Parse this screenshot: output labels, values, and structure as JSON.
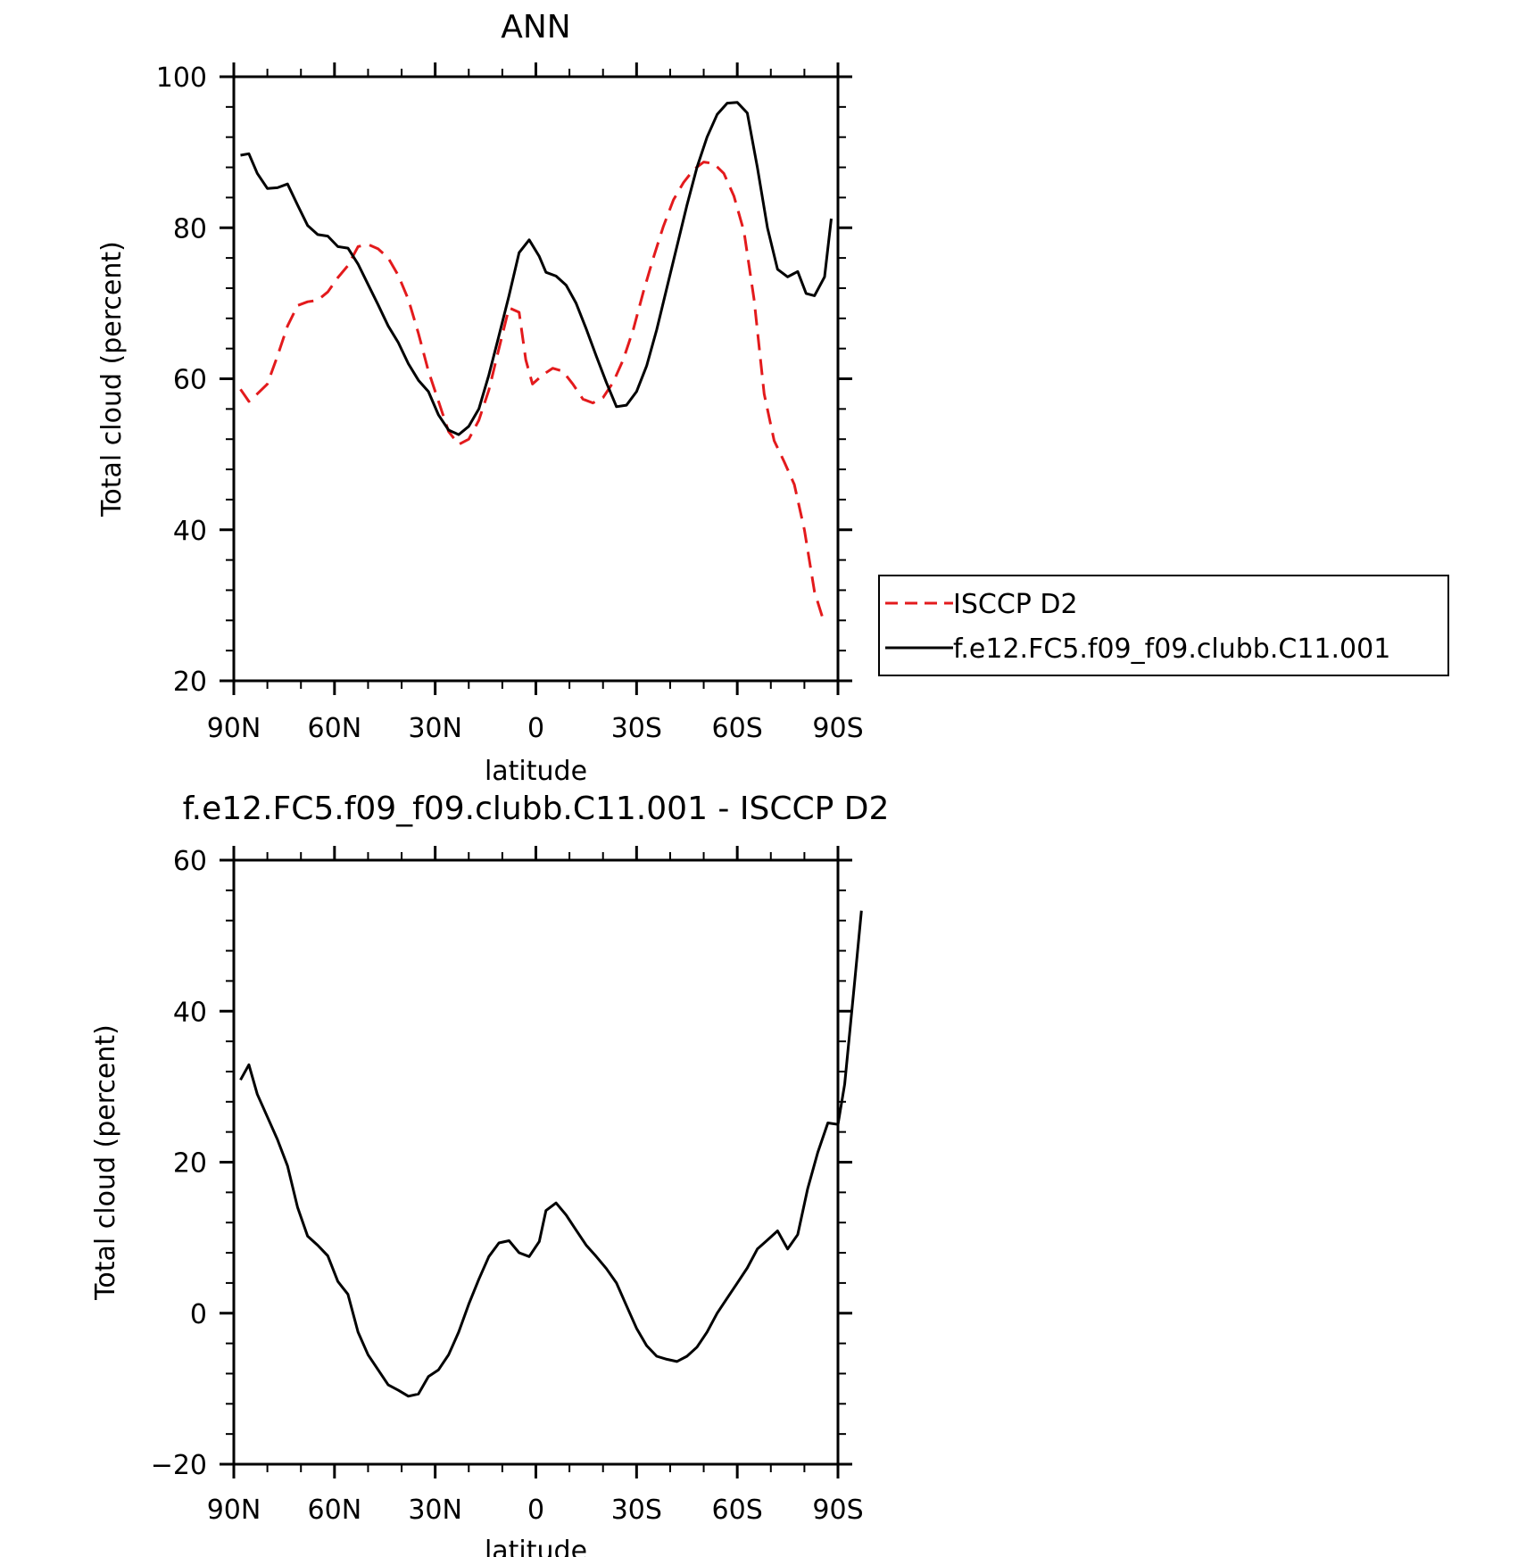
{
  "chart_data": [
    {
      "type": "line",
      "title": "ANN",
      "xlabel": "latitude",
      "ylabel": "Total cloud (percent)",
      "xlim": [
        -90,
        90
      ],
      "ylim": [
        20,
        100
      ],
      "x_ticks": [
        -90,
        -60,
        -30,
        0,
        30,
        60,
        90
      ],
      "x_tick_labels": [
        "90N",
        "60N",
        "30N",
        "0",
        "30S",
        "60S",
        "90S"
      ],
      "y_ticks": [
        20,
        40,
        60,
        80,
        100
      ],
      "y_tick_labels": [
        "20",
        "40",
        "60",
        "80",
        "100"
      ],
      "grid": false,
      "legend_position": "right-middle",
      "series": [
        {
          "name": "ISCCP D2",
          "color": "#e31a1c",
          "dash": "dashed",
          "points": [
            [
              -88,
              58.6
            ],
            [
              -85.5,
              57.0
            ],
            [
              -83,
              58.0
            ],
            [
              -80,
              59.3
            ],
            [
              -77,
              63.0
            ],
            [
              -74,
              67.0
            ],
            [
              -71,
              69.7
            ],
            [
              -68,
              70.2
            ],
            [
              -65,
              70.4
            ],
            [
              -62,
              71.5
            ],
            [
              -59,
              73.4
            ],
            [
              -56,
              75.0
            ],
            [
              -53,
              77.5
            ],
            [
              -50,
              77.8
            ],
            [
              -47,
              77.2
            ],
            [
              -44,
              76.0
            ],
            [
              -41,
              73.7
            ],
            [
              -38,
              70.5
            ],
            [
              -35,
              66.0
            ],
            [
              -32,
              61.0
            ],
            [
              -29,
              57.0
            ],
            [
              -26,
              53.0
            ],
            [
              -23,
              51.3
            ],
            [
              -20,
              52.0
            ],
            [
              -17,
              54.5
            ],
            [
              -14,
              58.5
            ],
            [
              -11,
              64.0
            ],
            [
              -8,
              69.4
            ],
            [
              -5,
              68.8
            ],
            [
              -3,
              62.5
            ],
            [
              -1,
              59.3
            ],
            [
              2,
              60.5
            ],
            [
              5,
              61.4
            ],
            [
              8,
              61.0
            ],
            [
              11,
              59.3
            ],
            [
              14,
              57.3
            ],
            [
              17,
              56.8
            ],
            [
              20,
              57.5
            ],
            [
              23,
              59.5
            ],
            [
              26,
              62.5
            ],
            [
              29,
              66.5
            ],
            [
              32,
              71.5
            ],
            [
              35,
              76.0
            ],
            [
              38,
              80.2
            ],
            [
              41,
              83.7
            ],
            [
              44,
              86.0
            ],
            [
              47,
              87.7
            ],
            [
              50,
              88.7
            ],
            [
              53,
              88.5
            ],
            [
              56,
              87.2
            ],
            [
              59,
              84.2
            ],
            [
              62,
              79.5
            ],
            [
              65,
              70.5
            ],
            [
              68,
              58.0
            ],
            [
              71,
              51.8
            ],
            [
              74,
              49.0
            ],
            [
              77,
              46.0
            ],
            [
              80,
              40.0
            ],
            [
              83,
              31.8
            ],
            [
              86,
              27.5
            ]
          ]
        },
        {
          "name": "f.e12.FC5.f09_f09.clubb.C11.001",
          "color": "#000000",
          "dash": "solid",
          "points": [
            [
              -88,
              89.6
            ],
            [
              -85.5,
              89.8
            ],
            [
              -83,
              87.2
            ],
            [
              -80,
              85.2
            ],
            [
              -77,
              85.3
            ],
            [
              -74,
              85.8
            ],
            [
              -71,
              83.0
            ],
            [
              -68,
              80.3
            ],
            [
              -65,
              79.1
            ],
            [
              -62,
              78.9
            ],
            [
              -59,
              77.5
            ],
            [
              -56,
              77.3
            ],
            [
              -53,
              75.2
            ],
            [
              -50,
              72.5
            ],
            [
              -47,
              69.8
            ],
            [
              -44,
              67.0
            ],
            [
              -41,
              64.8
            ],
            [
              -38,
              62.0
            ],
            [
              -35,
              59.8
            ],
            [
              -32,
              58.3
            ],
            [
              -29,
              55.2
            ],
            [
              -26,
              53.2
            ],
            [
              -23,
              52.6
            ],
            [
              -20,
              53.7
            ],
            [
              -17,
              56.0
            ],
            [
              -14,
              60.5
            ],
            [
              -11,
              65.7
            ],
            [
              -8,
              71.0
            ],
            [
              -5,
              76.7
            ],
            [
              -2,
              78.4
            ],
            [
              1,
              76.2
            ],
            [
              3,
              74.1
            ],
            [
              6,
              73.6
            ],
            [
              9,
              72.4
            ],
            [
              12,
              70.0
            ],
            [
              15,
              66.6
            ],
            [
              18,
              63.0
            ],
            [
              21,
              59.5
            ],
            [
              24,
              56.3
            ],
            [
              27,
              56.5
            ],
            [
              30,
              58.3
            ],
            [
              33,
              61.7
            ],
            [
              36,
              66.5
            ],
            [
              39,
              72.0
            ],
            [
              42,
              77.5
            ],
            [
              45,
              83.0
            ],
            [
              48,
              88.0
            ],
            [
              51,
              92.0
            ],
            [
              54,
              95.0
            ],
            [
              57,
              96.5
            ],
            [
              60,
              96.6
            ],
            [
              63,
              95.2
            ],
            [
              66,
              88.0
            ],
            [
              69,
              80.0
            ],
            [
              72,
              74.5
            ],
            [
              75,
              73.5
            ],
            [
              78,
              74.2
            ],
            [
              80.5,
              71.3
            ],
            [
              83,
              71.0
            ],
            [
              86,
              73.5
            ],
            [
              88,
              81.2
            ]
          ]
        }
      ]
    },
    {
      "type": "line",
      "title": "f.e12.FC5.f09_f09.clubb.C11.001 - ISCCP D2",
      "xlabel": "latitude",
      "ylabel": "Total cloud (percent)",
      "xlim": [
        -90,
        90
      ],
      "ylim": [
        -20,
        60
      ],
      "x_ticks": [
        -90,
        -60,
        -30,
        0,
        30,
        60,
        90
      ],
      "x_tick_labels": [
        "90N",
        "60N",
        "30N",
        "0",
        "30S",
        "60S",
        "90S"
      ],
      "y_ticks": [
        -20,
        0,
        20,
        40,
        60
      ],
      "y_tick_labels": [
        "−20",
        "0",
        "20",
        "40",
        "60"
      ],
      "grid": false,
      "series": [
        {
          "color": "#000000",
          "dash": "solid",
          "points": [
            [
              -88,
              30.9
            ],
            [
              -85.5,
              32.9
            ],
            [
              -83,
              29.0
            ],
            [
              -80,
              26.0
            ],
            [
              -77,
              23.0
            ],
            [
              -74,
              19.5
            ],
            [
              -71,
              14.0
            ],
            [
              -68,
              10.2
            ],
            [
              -65,
              9.0
            ],
            [
              -62,
              7.6
            ],
            [
              -59,
              4.2
            ],
            [
              -56,
              2.5
            ],
            [
              -53,
              -2.5
            ],
            [
              -50,
              -5.5
            ],
            [
              -47,
              -7.5
            ],
            [
              -44,
              -9.5
            ],
            [
              -41,
              -10.2
            ],
            [
              -38,
              -11.0
            ],
            [
              -35,
              -10.7
            ],
            [
              -32,
              -8.4
            ],
            [
              -29,
              -7.5
            ],
            [
              -26,
              -5.5
            ],
            [
              -23,
              -2.5
            ],
            [
              -20,
              1.2
            ],
            [
              -17,
              4.5
            ],
            [
              -14,
              7.5
            ],
            [
              -11,
              9.3
            ],
            [
              -8,
              9.6
            ],
            [
              -5,
              8.0
            ],
            [
              -2,
              7.5
            ],
            [
              1,
              9.5
            ],
            [
              3,
              13.6
            ],
            [
              6,
              14.6
            ],
            [
              9,
              13.0
            ],
            [
              12,
              11.0
            ],
            [
              15,
              9.0
            ],
            [
              18,
              7.5
            ],
            [
              21,
              5.9
            ],
            [
              24,
              4.0
            ],
            [
              27,
              1.0
            ],
            [
              30,
              -2.0
            ],
            [
              33,
              -4.3
            ],
            [
              36,
              -5.7
            ],
            [
              39,
              -6.1
            ],
            [
              42,
              -6.4
            ],
            [
              45,
              -5.7
            ],
            [
              48,
              -4.5
            ],
            [
              51,
              -2.5
            ],
            [
              54,
              0.0
            ],
            [
              57,
              2.0
            ],
            [
              60,
              4.0
            ],
            [
              63,
              6.0
            ],
            [
              66,
              8.5
            ],
            [
              69,
              9.7
            ],
            [
              72,
              10.9
            ],
            [
              75,
              8.5
            ],
            [
              78,
              10.4
            ],
            [
              81,
              16.5
            ],
            [
              84,
              21.3
            ],
            [
              87,
              25.2
            ],
            [
              90,
              25.0
            ],
            [
              92,
              30.3
            ],
            [
              95,
              44.0
            ],
            [
              97,
              53.3
            ]
          ]
        }
      ]
    }
  ]
}
